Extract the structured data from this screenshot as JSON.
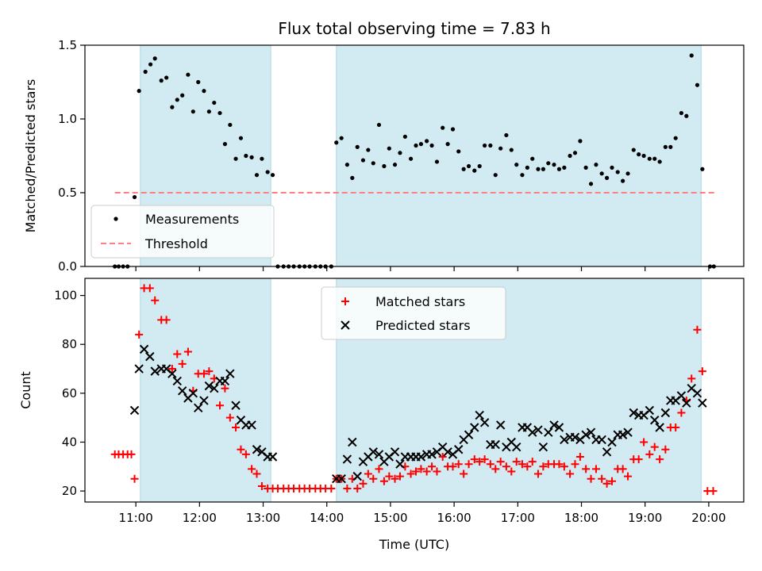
{
  "chart_data": {
    "title": "Flux total observing time = 7.83 h",
    "xlabel": "Time (UTC)",
    "x_range_hours": [
      10.2,
      20.55
    ],
    "x_ticks": [
      {
        "value": 11,
        "label": "11:00"
      },
      {
        "value": 12,
        "label": "12:00"
      },
      {
        "value": 13,
        "label": "13:00"
      },
      {
        "value": 14,
        "label": "14:00"
      },
      {
        "value": 15,
        "label": "15:00"
      },
      {
        "value": 16,
        "label": "16:00"
      },
      {
        "value": 17,
        "label": "17:00"
      },
      {
        "value": 18,
        "label": "18:00"
      },
      {
        "value": 19,
        "label": "19:00"
      },
      {
        "value": 20,
        "label": "20:00"
      }
    ],
    "shaded_intervals_hours": [
      [
        11.07,
        13.12
      ],
      [
        14.15,
        19.88
      ]
    ],
    "shade_color": "#add8e6",
    "panels": [
      {
        "type": "scatter",
        "ylabel": "Matched/Predicted stars",
        "ylim": [
          0,
          1.5
        ],
        "yticks": [
          {
            "value": 0,
            "label": "0.0"
          },
          {
            "value": 0.5,
            "label": "0.5"
          },
          {
            "value": 1.0,
            "label": "1.0"
          },
          {
            "value": 1.5,
            "label": "1.5"
          }
        ],
        "threshold": {
          "name": "Threshold",
          "value": 0.5,
          "x_range": [
            10.67,
            20.1
          ],
          "color": "#ff7f7f"
        },
        "series": [
          {
            "name": "Measurements",
            "color": "#000000",
            "marker": "dot",
            "x": [
              10.67,
              10.73,
              10.8,
              10.87,
              10.98,
              11.05,
              11.15,
              11.23,
              11.3,
              11.4,
              11.48,
              11.57,
              11.65,
              11.73,
              11.82,
              11.9,
              11.98,
              12.07,
              12.15,
              12.23,
              12.32,
              12.4,
              12.48,
              12.57,
              12.65,
              12.73,
              12.82,
              12.9,
              12.98,
              13.07,
              13.15,
              13.23,
              13.32,
              13.4,
              13.48,
              13.57,
              13.65,
              13.73,
              13.82,
              13.9,
              13.98,
              14.07,
              14.15,
              14.23,
              14.32,
              14.4,
              14.48,
              14.57,
              14.65,
              14.73,
              14.82,
              14.9,
              14.98,
              15.07,
              15.15,
              15.23,
              15.32,
              15.4,
              15.48,
              15.57,
              15.65,
              15.73,
              15.82,
              15.9,
              15.98,
              16.07,
              16.15,
              16.23,
              16.32,
              16.4,
              16.48,
              16.57,
              16.65,
              16.73,
              16.82,
              16.9,
              16.98,
              17.07,
              17.15,
              17.23,
              17.32,
              17.4,
              17.48,
              17.57,
              17.65,
              17.73,
              17.82,
              17.9,
              17.98,
              18.07,
              18.15,
              18.23,
              18.32,
              18.4,
              18.48,
              18.57,
              18.65,
              18.73,
              18.82,
              18.9,
              18.98,
              19.07,
              19.15,
              19.23,
              19.32,
              19.4,
              19.48,
              19.57,
              19.65,
              19.73,
              19.82,
              19.9,
              20.02,
              20.08
            ],
            "y": [
              0,
              0,
              0,
              0,
              0.47,
              1.19,
              1.32,
              1.37,
              1.41,
              1.26,
              1.28,
              1.08,
              1.13,
              1.16,
              1.3,
              1.05,
              1.25,
              1.19,
              1.05,
              1.11,
              1.04,
              0.83,
              0.96,
              0.73,
              0.87,
              0.75,
              0.74,
              0.62,
              0.73,
              0.64,
              0.62,
              0,
              0,
              0,
              0,
              0,
              0,
              0,
              0,
              0,
              0,
              0,
              0.84,
              0.87,
              0.69,
              0.6,
              0.81,
              0.72,
              0.79,
              0.7,
              0.96,
              0.68,
              0.8,
              0.69,
              0.77,
              0.88,
              0.73,
              0.82,
              0.83,
              0.85,
              0.82,
              0.71,
              0.94,
              0.83,
              0.93,
              0.78,
              0.66,
              0.68,
              0.65,
              0.68,
              0.82,
              0.82,
              0.62,
              0.8,
              0.89,
              0.79,
              0.69,
              0.62,
              0.67,
              0.73,
              0.66,
              0.66,
              0.7,
              0.69,
              0.66,
              0.67,
              0.75,
              0.77,
              0.85,
              0.67,
              0.56,
              0.69,
              0.63,
              0.6,
              0.67,
              0.64,
              0.58,
              0.63,
              0.79,
              0.76,
              0.75,
              0.73,
              0.73,
              0.71,
              0.81,
              0.81,
              0.87,
              1.04,
              1.02,
              1.43,
              1.23,
              0.66,
              0,
              0
            ]
          }
        ],
        "legend": {
          "placement": "lower-left",
          "entries": [
            "Measurements",
            "Threshold"
          ]
        }
      },
      {
        "type": "scatter",
        "ylabel": "Count",
        "ylim": [
          15.5,
          107
        ],
        "yticks": [
          {
            "value": 20,
            "label": "20"
          },
          {
            "value": 40,
            "label": "40"
          },
          {
            "value": 60,
            "label": "60"
          },
          {
            "value": 80,
            "label": "80"
          },
          {
            "value": 100,
            "label": "100"
          }
        ],
        "series": [
          {
            "name": "Matched stars",
            "color": "#ff0000",
            "marker": "plus",
            "x": [
              10.67,
              10.73,
              10.8,
              10.87,
              10.93,
              10.98,
              11.05,
              11.13,
              11.22,
              11.3,
              11.4,
              11.48,
              11.57,
              11.65,
              11.73,
              11.82,
              11.9,
              11.98,
              12.07,
              12.15,
              12.23,
              12.32,
              12.4,
              12.48,
              12.57,
              12.65,
              12.73,
              12.82,
              12.9,
              12.98,
              13.07,
              13.15,
              13.23,
              13.32,
              13.4,
              13.48,
              13.57,
              13.65,
              13.73,
              13.82,
              13.9,
              13.98,
              14.07,
              14.15,
              14.23,
              14.32,
              14.4,
              14.48,
              14.57,
              14.65,
              14.73,
              14.82,
              14.9,
              14.98,
              15.07,
              15.15,
              15.23,
              15.32,
              15.4,
              15.48,
              15.57,
              15.65,
              15.73,
              15.82,
              15.9,
              15.98,
              16.07,
              16.15,
              16.23,
              16.32,
              16.4,
              16.48,
              16.57,
              16.65,
              16.73,
              16.82,
              16.9,
              16.98,
              17.07,
              17.15,
              17.23,
              17.32,
              17.4,
              17.48,
              17.57,
              17.65,
              17.73,
              17.82,
              17.9,
              17.98,
              18.07,
              18.15,
              18.23,
              18.32,
              18.4,
              18.48,
              18.57,
              18.65,
              18.73,
              18.82,
              18.9,
              18.98,
              19.07,
              19.15,
              19.23,
              19.32,
              19.4,
              19.48,
              19.57,
              19.65,
              19.73,
              19.82,
              19.9,
              19.98,
              20.07
            ],
            "y": [
              35,
              35,
              35,
              35,
              35,
              25,
              84,
              103,
              103,
              98,
              90,
              90,
              70,
              76,
              72,
              77,
              61,
              68,
              68,
              69,
              66,
              55,
              62,
              50,
              46,
              37,
              35,
              29,
              27,
              22,
              21,
              21,
              21,
              21,
              21,
              21,
              21,
              21,
              21,
              21,
              21,
              21,
              21,
              25,
              25,
              21,
              25,
              21,
              23,
              27,
              25,
              29,
              24,
              26,
              25,
              26,
              30,
              27,
              28,
              29,
              28,
              30,
              28,
              34,
              30,
              30,
              31,
              27,
              31,
              33,
              32,
              33,
              31,
              29,
              32,
              30,
              28,
              32,
              31,
              30,
              32,
              27,
              30,
              31,
              31,
              31,
              30,
              27,
              31,
              34,
              29,
              25,
              29,
              25,
              23,
              24,
              29,
              29,
              26,
              33,
              33,
              40,
              35,
              38,
              33,
              37,
              46,
              46,
              52,
              57,
              66,
              86,
              69,
              20,
              20
            ],
            "note_unused": ""
          },
          {
            "name": "Predicted stars",
            "color": "#000000",
            "marker": "x",
            "x": [
              10.98,
              11.05,
              11.13,
              11.22,
              11.3,
              11.4,
              11.48,
              11.57,
              11.65,
              11.73,
              11.82,
              11.9,
              11.98,
              12.07,
              12.15,
              12.23,
              12.32,
              12.4,
              12.48,
              12.57,
              12.65,
              12.73,
              12.82,
              12.9,
              12.98,
              13.07,
              13.15,
              14.15,
              14.23,
              14.32,
              14.4,
              14.48,
              14.57,
              14.65,
              14.73,
              14.82,
              14.9,
              14.98,
              15.07,
              15.15,
              15.23,
              15.32,
              15.4,
              15.48,
              15.57,
              15.65,
              15.73,
              15.82,
              15.9,
              15.98,
              16.07,
              16.15,
              16.23,
              16.32,
              16.4,
              16.48,
              16.57,
              16.65,
              16.73,
              16.82,
              16.9,
              16.98,
              17.07,
              17.15,
              17.23,
              17.32,
              17.4,
              17.48,
              17.57,
              17.65,
              17.73,
              17.82,
              17.9,
              17.98,
              18.07,
              18.15,
              18.23,
              18.32,
              18.4,
              18.48,
              18.57,
              18.65,
              18.73,
              18.82,
              18.9,
              18.98,
              19.07,
              19.15,
              19.23,
              19.32,
              19.4,
              19.48,
              19.57,
              19.65,
              19.73,
              19.82,
              19.9
            ],
            "y": [
              53,
              70,
              78,
              75,
              69,
              70,
              70,
              68,
              65,
              61,
              58,
              60,
              54,
              57,
              63,
              62,
              65,
              65,
              68,
              55,
              49,
              47,
              47,
              37,
              36,
              34,
              34,
              25,
              25,
              33,
              40,
              26,
              32,
              34,
              36,
              35,
              32,
              34,
              36,
              31,
              34,
              34,
              34,
              34,
              35,
              35,
              36,
              38,
              36,
              35,
              37,
              41,
              43,
              46,
              51,
              48,
              39,
              39,
              47,
              38,
              40,
              38,
              46,
              46,
              44,
              45,
              38,
              44,
              47,
              46,
              41,
              42,
              42,
              41,
              43,
              44,
              41,
              41,
              36,
              40,
              43,
              43,
              44,
              52,
              51,
              51,
              53,
              49,
              46,
              52,
              57,
              57,
              59,
              56,
              62,
              60,
              56
            ]
          }
        ],
        "legend": {
          "placement": "upper-center",
          "entries": [
            "Matched stars",
            "Predicted stars"
          ]
        }
      }
    ]
  }
}
